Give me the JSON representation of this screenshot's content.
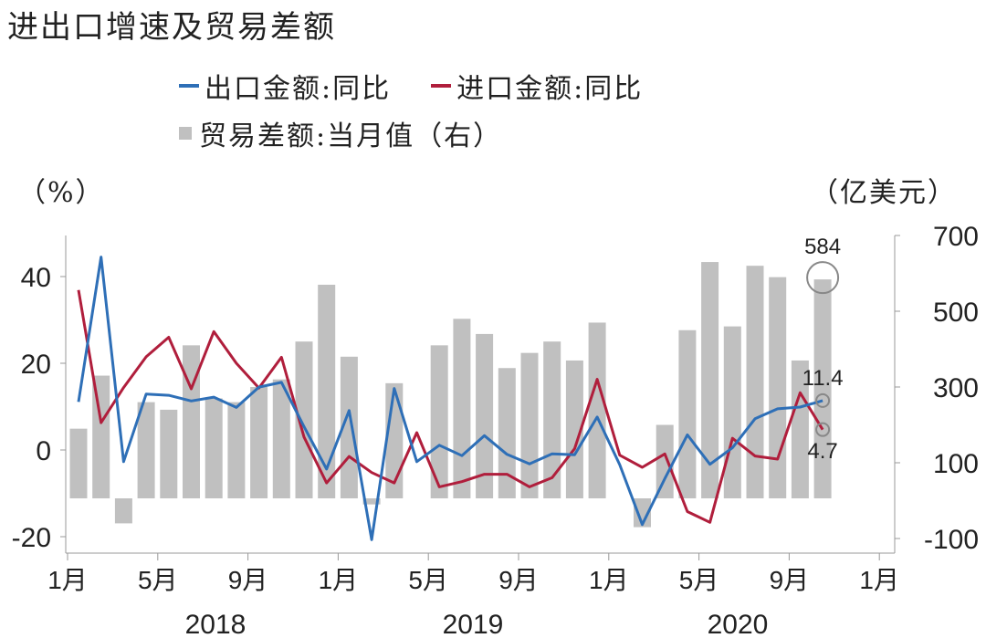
{
  "title": "进出口增速及贸易差额",
  "chart_data": {
    "type": "bar+line",
    "title": "进出口增速及贸易差额",
    "legend": [
      {
        "name": "出口金额:同比",
        "color": "#2e6fb7",
        "kind": "line"
      },
      {
        "name": "进口金额:同比",
        "color": "#b01e3c",
        "kind": "line"
      },
      {
        "name": "贸易差额:当月值（右）",
        "color": "#c0c0c0",
        "kind": "bar"
      }
    ],
    "ylabel_left": "（%）",
    "ylabel_right": "（亿美元）",
    "ylim_left": [
      -25,
      55
    ],
    "ylim_right": [
      -150,
      700
    ],
    "yticks_left": [
      "40",
      "20",
      "0",
      "-20"
    ],
    "yticks_left_values": [
      40,
      20,
      0,
      -20
    ],
    "yticks_right": [
      "700",
      "500",
      "300",
      "100",
      "-100"
    ],
    "yticks_right_values": [
      700,
      500,
      300,
      100,
      -100
    ],
    "xtick_labels": [
      "1月",
      "5月",
      "9月",
      "1月",
      "5月",
      "9月",
      "1月",
      "5月",
      "9月",
      "1月"
    ],
    "year_labels": [
      "2018",
      "2019",
      "2020"
    ],
    "months": [
      "2018-01",
      "2018-02",
      "2018-03",
      "2018-04",
      "2018-05",
      "2018-06",
      "2018-07",
      "2018-08",
      "2018-09",
      "2018-10",
      "2018-11",
      "2018-12",
      "2019-01",
      "2019-02",
      "2019-03",
      "2019-04",
      "2019-05",
      "2019-06",
      "2019-07",
      "2019-08",
      "2019-09",
      "2019-10",
      "2019-11",
      "2019-12",
      "2020-01",
      "2020-02",
      "2020-03",
      "2020-04",
      "2020-05",
      "2020-06",
      "2020-07",
      "2020-08",
      "2020-09",
      "2020-10"
    ],
    "series": [
      {
        "name": "贸易差额:当月值（右）",
        "type": "bar",
        "values": [
          190,
          330,
          -60,
          260,
          240,
          410,
          270,
          260,
          300,
          320,
          420,
          570,
          380,
          -10,
          310,
          null,
          410,
          480,
          440,
          350,
          390,
          420,
          370,
          470,
          null,
          -70,
          200,
          450,
          630,
          460,
          620,
          590,
          370,
          584
        ]
      },
      {
        "name": "出口金额:同比",
        "type": "line",
        "values": [
          11.1,
          44.5,
          -2.7,
          12.9,
          12.6,
          11.3,
          12.2,
          9.8,
          14.5,
          15.6,
          5.4,
          -4.4,
          9.1,
          -20.7,
          14.2,
          -2.7,
          1.1,
          -1.3,
          3.3,
          -1.0,
          -3.2,
          -0.9,
          -1.1,
          7.6,
          -3.4,
          -17.2,
          -6.6,
          3.5,
          -3.3,
          0.5,
          7.2,
          9.5,
          9.9,
          11.4
        ]
      },
      {
        "name": "进口金额:同比",
        "type": "line",
        "values": [
          36.9,
          6.3,
          14.4,
          21.5,
          26.0,
          14.1,
          27.3,
          20.0,
          14.3,
          21.4,
          3.0,
          -7.6,
          -1.5,
          -5.2,
          -7.6,
          4.0,
          -8.5,
          -7.3,
          -5.6,
          -5.6,
          -8.5,
          -6.4,
          0.3,
          16.3,
          -1.2,
          -4.0,
          -0.9,
          -14.2,
          -16.7,
          2.7,
          -1.4,
          -2.1,
          13.2,
          4.7
        ]
      }
    ],
    "annotations": [
      {
        "text": "584",
        "series": "贸易差额:当月值（右）",
        "month": "2020-10",
        "value": 584
      },
      {
        "text": "11.4",
        "series": "出口金额:同比",
        "month": "2020-10",
        "value": 11.4
      },
      {
        "text": "4.7",
        "series": "进口金额:同比",
        "month": "2020-10",
        "value": 4.7
      }
    ]
  }
}
